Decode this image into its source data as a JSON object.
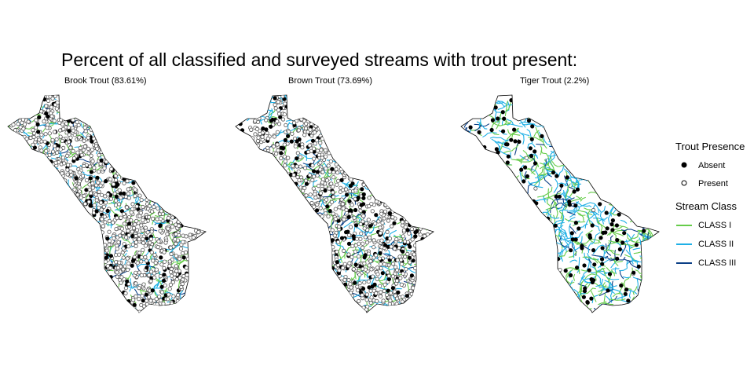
{
  "title": "Percent of all classified and surveyed streams with trout present:",
  "panels": [
    {
      "label": "Brook Trout (83.61%)",
      "species": "Brook Trout",
      "percent_present": 83.61
    },
    {
      "label": "Brown Trout (73.69%)",
      "species": "Brown Trout",
      "percent_present": 73.69
    },
    {
      "label": "Tiger Trout (2.2%)",
      "species": "Tiger Trout",
      "percent_present": 2.2
    }
  ],
  "legend": {
    "presence": {
      "title": "Trout Presence",
      "items": [
        {
          "label": "Absent",
          "symbol": "filled-circle",
          "color": "#000000"
        },
        {
          "label": "Present",
          "symbol": "open-circle",
          "color": "#555555"
        }
      ]
    },
    "stream_class": {
      "title": "Stream Class",
      "items": [
        {
          "label": "CLASS I",
          "color": "#66cc4a"
        },
        {
          "label": "CLASS II",
          "color": "#1fb0e6"
        },
        {
          "label": "CLASS III",
          "color": "#0b3f86"
        }
      ]
    }
  },
  "colors": {
    "region_outline": "#000000",
    "present_marker_stroke": "#555555",
    "absent_marker_fill": "#000000"
  }
}
